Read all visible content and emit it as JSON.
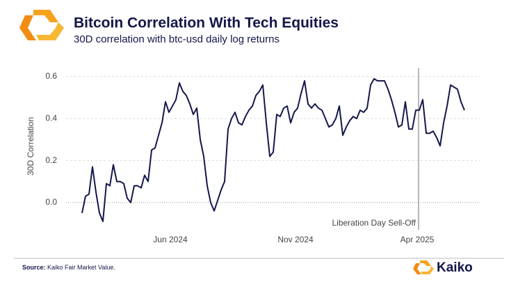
{
  "chart_data": {
    "type": "line",
    "title": "Bitcoin Correlation With Tech Equities",
    "subtitle": "30D correlation with btc-usd daily log returns",
    "y_label": "30D Correlation",
    "source_label": "Source:",
    "source_text": "Kaiko Fair Market Value.",
    "brand": "Kaiko",
    "annotation": {
      "text": "Liberation Day Sell-Off",
      "x": 96.8
    },
    "color": "#14164a",
    "grid": true,
    "xlim": [
      0,
      109
    ],
    "xticks": [
      {
        "value": 25.4,
        "label": "Jun 2024"
      },
      {
        "value": 61.4,
        "label": "Nov 2024"
      },
      {
        "value": 96.4,
        "label": "Apr 2025"
      }
    ],
    "ylim": [
      -0.1,
      0.65
    ],
    "yticks": [
      {
        "value": 0,
        "label": "0.0"
      },
      0.2,
      0.4,
      0.6
    ],
    "values": [
      -0.05,
      0.03,
      0.04,
      0.17,
      0.05,
      -0.05,
      -0.09,
      0.09,
      0.08,
      0.18,
      0.1,
      0.1,
      0.09,
      0.02,
      0.0,
      0.08,
      0.08,
      0.07,
      0.13,
      0.1,
      0.25,
      0.26,
      0.32,
      0.38,
      0.48,
      0.43,
      0.46,
      0.49,
      0.57,
      0.53,
      0.51,
      0.47,
      0.42,
      0.45,
      0.3,
      0.22,
      0.08,
      0.0,
      -0.04,
      0.01,
      0.06,
      0.1,
      0.35,
      0.4,
      0.43,
      0.38,
      0.37,
      0.41,
      0.44,
      0.46,
      0.51,
      0.53,
      0.56,
      0.38,
      0.22,
      0.24,
      0.42,
      0.41,
      0.45,
      0.46,
      0.38,
      0.43,
      0.45,
      0.52,
      0.58,
      0.47,
      0.45,
      0.47,
      0.45,
      0.44,
      0.4,
      0.36,
      0.37,
      0.4,
      0.46,
      0.32,
      0.36,
      0.39,
      0.41,
      0.4,
      0.44,
      0.43,
      0.45,
      0.56,
      0.59,
      0.58,
      0.58,
      0.58,
      0.54,
      0.49,
      0.43,
      0.36,
      0.37,
      0.48,
      0.35,
      0.35,
      0.44,
      0.44,
      0.49,
      0.33,
      0.33,
      0.34,
      0.31,
      0.27,
      0.38,
      0.46,
      0.56,
      0.55,
      0.54,
      0.48,
      0.44
    ]
  }
}
